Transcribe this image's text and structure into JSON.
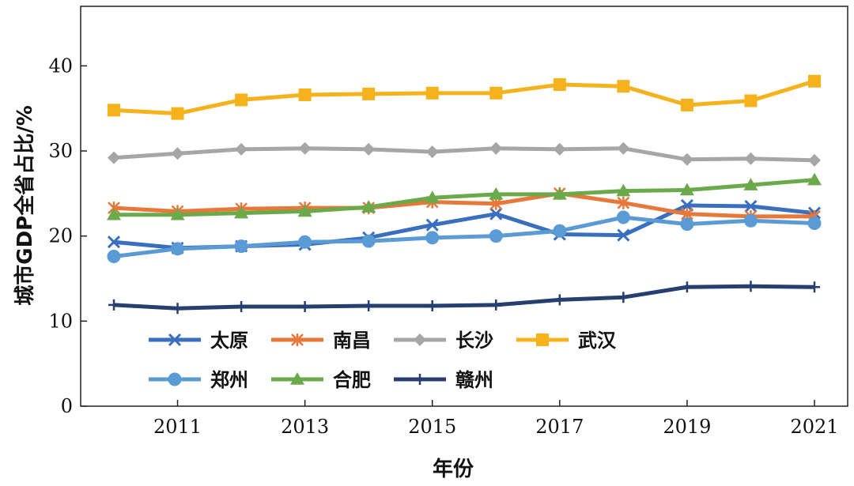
{
  "chart_data": {
    "type": "line",
    "title": "",
    "xlabel": "年份",
    "ylabel": "城市GDP全省占比/%",
    "xlim": [
      2010,
      2021
    ],
    "ylim": [
      0,
      47
    ],
    "x_ticks": [
      2011,
      2013,
      2015,
      2017,
      2019,
      2021
    ],
    "y_ticks": [
      0,
      10,
      20,
      30,
      40
    ],
    "x": [
      2010,
      2011,
      2012,
      2013,
      2014,
      2015,
      2016,
      2017,
      2018,
      2019,
      2020,
      2021
    ],
    "legend_position": "bottom-left-inside",
    "series": [
      {
        "name": "太原",
        "color": "#3a6fbf",
        "marker": "x",
        "values": [
          19.3,
          18.6,
          18.8,
          19.0,
          19.8,
          21.3,
          22.6,
          20.2,
          20.1,
          23.6,
          23.5,
          22.7
        ]
      },
      {
        "name": "南昌",
        "color": "#e8773a",
        "marker": "asterisk",
        "values": [
          23.3,
          22.9,
          23.2,
          23.3,
          23.3,
          24.0,
          23.8,
          25.0,
          23.9,
          22.6,
          22.3,
          22.3
        ]
      },
      {
        "name": "长沙",
        "color": "#a6a6a6",
        "marker": "diamond",
        "values": [
          29.2,
          29.7,
          30.2,
          30.3,
          30.2,
          29.9,
          30.3,
          30.2,
          30.3,
          29.0,
          29.1,
          28.9
        ]
      },
      {
        "name": "武汉",
        "color": "#f5b21c",
        "marker": "square",
        "values": [
          34.8,
          34.4,
          36.0,
          36.6,
          36.7,
          36.8,
          36.8,
          37.8,
          37.6,
          35.4,
          35.9,
          38.2
        ]
      },
      {
        "name": "郑州",
        "color": "#5b9bd5",
        "marker": "circle",
        "values": [
          17.6,
          18.5,
          18.8,
          19.3,
          19.4,
          19.8,
          20.0,
          20.6,
          22.2,
          21.4,
          21.8,
          21.5
        ]
      },
      {
        "name": "合肥",
        "color": "#6aaa4a",
        "marker": "triangle",
        "values": [
          22.5,
          22.5,
          22.7,
          22.9,
          23.4,
          24.5,
          24.9,
          24.9,
          25.3,
          25.4,
          26.0,
          26.6
        ]
      },
      {
        "name": "赣州",
        "color": "#263f6e",
        "marker": "plus",
        "values": [
          11.9,
          11.5,
          11.7,
          11.7,
          11.8,
          11.8,
          11.9,
          12.5,
          12.8,
          14.0,
          14.1,
          14.0
        ]
      }
    ]
  }
}
